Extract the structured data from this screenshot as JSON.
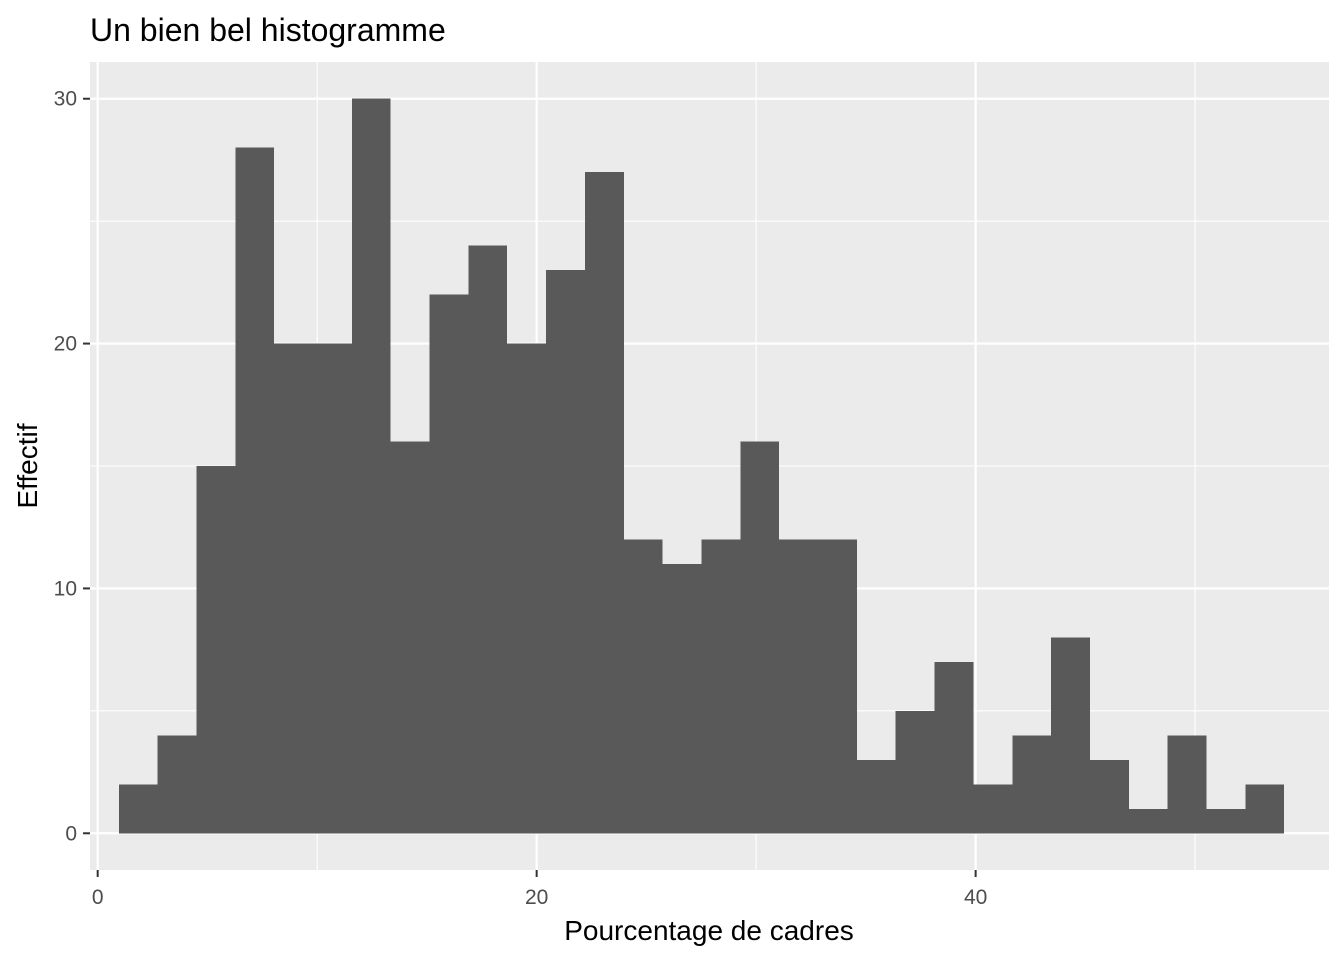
{
  "chart_data": {
    "type": "bar",
    "title": "Un bien bel histogramme",
    "xlabel": "Pourcentage de cadres",
    "ylabel": "Effectif",
    "xlim": [
      -0.35,
      56.1
    ],
    "ylim": [
      -1.5,
      31.5
    ],
    "x_ticks": [
      0,
      20,
      40
    ],
    "x_minor_ticks": [
      10,
      30,
      50
    ],
    "y_ticks": [
      0,
      10,
      20,
      30
    ],
    "y_minor_ticks": [
      5,
      15,
      25
    ],
    "grid": true,
    "bins": [
      {
        "x0": 0.96,
        "x1": 2.73,
        "count": 2
      },
      {
        "x0": 2.73,
        "x1": 4.5,
        "count": 4
      },
      {
        "x0": 4.5,
        "x1": 6.27,
        "count": 15
      },
      {
        "x0": 6.27,
        "x1": 8.04,
        "count": 28
      },
      {
        "x0": 8.04,
        "x1": 9.81,
        "count": 20
      },
      {
        "x0": 9.81,
        "x1": 11.58,
        "count": 20
      },
      {
        "x0": 11.58,
        "x1": 13.35,
        "count": 30
      },
      {
        "x0": 13.35,
        "x1": 15.12,
        "count": 16
      },
      {
        "x0": 15.12,
        "x1": 16.89,
        "count": 22
      },
      {
        "x0": 16.89,
        "x1": 18.66,
        "count": 24
      },
      {
        "x0": 18.66,
        "x1": 20.43,
        "count": 20
      },
      {
        "x0": 20.43,
        "x1": 22.2,
        "count": 23
      },
      {
        "x0": 22.2,
        "x1": 23.97,
        "count": 27
      },
      {
        "x0": 23.97,
        "x1": 25.74,
        "count": 12
      },
      {
        "x0": 25.74,
        "x1": 27.51,
        "count": 11
      },
      {
        "x0": 27.51,
        "x1": 29.28,
        "count": 12
      },
      {
        "x0": 29.28,
        "x1": 31.05,
        "count": 16
      },
      {
        "x0": 31.05,
        "x1": 32.82,
        "count": 12
      },
      {
        "x0": 32.82,
        "x1": 34.59,
        "count": 12
      },
      {
        "x0": 34.59,
        "x1": 36.36,
        "count": 3
      },
      {
        "x0": 36.36,
        "x1": 38.13,
        "count": 5
      },
      {
        "x0": 38.13,
        "x1": 39.9,
        "count": 7
      },
      {
        "x0": 39.9,
        "x1": 41.67,
        "count": 2
      },
      {
        "x0": 41.67,
        "x1": 43.44,
        "count": 4
      },
      {
        "x0": 43.44,
        "x1": 45.21,
        "count": 8
      },
      {
        "x0": 45.21,
        "x1": 46.98,
        "count": 3
      },
      {
        "x0": 46.98,
        "x1": 48.75,
        "count": 1
      },
      {
        "x0": 48.75,
        "x1": 50.52,
        "count": 4
      },
      {
        "x0": 50.52,
        "x1": 52.29,
        "count": 1
      },
      {
        "x0": 52.29,
        "x1": 54.06,
        "count": 2
      }
    ],
    "colors": {
      "bar_fill": "#595959",
      "panel_background": "#ebebeb",
      "grid_line": "#ffffff",
      "tick_text": "#4d4d4d",
      "tick_mark": "#333333"
    }
  }
}
